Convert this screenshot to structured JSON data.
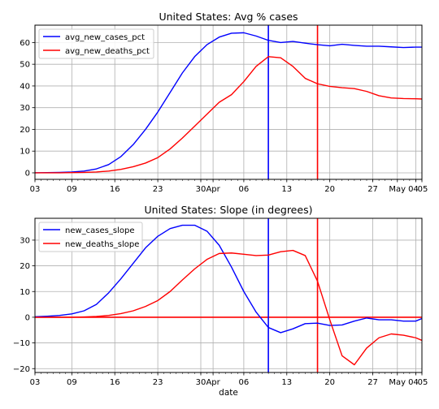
{
  "chart_data": [
    {
      "type": "line",
      "title": "United States: Avg % cases",
      "xlabel": "",
      "ylabel": "",
      "x_domain": [
        "2020-03-03",
        "2020-05-05"
      ],
      "ylim": [
        -3,
        68
      ],
      "y_ticks": [
        0,
        10,
        20,
        30,
        40,
        50,
        60
      ],
      "y_tick_labels": [
        "0",
        "10",
        "20",
        "30",
        "40",
        "50",
        "60"
      ],
      "grid": true,
      "legend_position": "top-left",
      "vlines": [
        {
          "x": "2020-04-10",
          "color": "#0000ff"
        },
        {
          "x": "2020-04-18",
          "color": "#ff0000"
        }
      ],
      "x": [
        "2020-03-03",
        "2020-03-05",
        "2020-03-07",
        "2020-03-09",
        "2020-03-11",
        "2020-03-13",
        "2020-03-15",
        "2020-03-17",
        "2020-03-19",
        "2020-03-21",
        "2020-03-23",
        "2020-03-25",
        "2020-03-27",
        "2020-03-29",
        "2020-03-31",
        "2020-04-02",
        "2020-04-04",
        "2020-04-06",
        "2020-04-08",
        "2020-04-10",
        "2020-04-12",
        "2020-04-14",
        "2020-04-16",
        "2020-04-18",
        "2020-04-20",
        "2020-04-22",
        "2020-04-24",
        "2020-04-26",
        "2020-04-28",
        "2020-04-30",
        "2020-05-02",
        "2020-05-04",
        "2020-05-05"
      ],
      "series": [
        {
          "name": "avg_new_cases_pct",
          "color": "#0000ff",
          "values": [
            0,
            0.1,
            0.2,
            0.4,
            0.8,
            1.8,
            3.8,
            7.5,
            13,
            20,
            28,
            37,
            46,
            53.5,
            59,
            62.5,
            64.3,
            64.5,
            63,
            61,
            60,
            60.5,
            59.7,
            59,
            58.5,
            59.2,
            58.7,
            58.3,
            58.3,
            58,
            57.7,
            57.9,
            57.9
          ]
        },
        {
          "name": "avg_new_deaths_pct",
          "color": "#ff0000",
          "values": [
            0,
            0,
            0,
            0.1,
            0.2,
            0.4,
            0.8,
            1.6,
            2.8,
            4.5,
            7,
            11,
            16,
            21.5,
            27,
            32.5,
            36,
            42,
            49,
            53.5,
            53,
            49,
            43.5,
            41,
            39.8,
            39.2,
            38.8,
            37.5,
            35.5,
            34.5,
            34.2,
            34.1,
            34
          ]
        }
      ]
    },
    {
      "type": "line",
      "title": "United States: Slope (in degrees)",
      "xlabel": "date",
      "ylabel": "",
      "x_domain": [
        "2020-03-03",
        "2020-05-05"
      ],
      "ylim": [
        -21.5,
        38.5
      ],
      "y_ticks": [
        -20,
        -10,
        0,
        10,
        20,
        30
      ],
      "y_tick_labels": [
        "−20",
        "−10",
        "0",
        "10",
        "20",
        "30"
      ],
      "grid": true,
      "legend_position": "top-left",
      "hline": {
        "y": 0,
        "color": "#ff0000"
      },
      "vlines": [
        {
          "x": "2020-04-10",
          "color": "#0000ff"
        },
        {
          "x": "2020-04-18",
          "color": "#ff0000"
        }
      ],
      "x": [
        "2020-03-03",
        "2020-03-05",
        "2020-03-07",
        "2020-03-09",
        "2020-03-11",
        "2020-03-13",
        "2020-03-15",
        "2020-03-17",
        "2020-03-19",
        "2020-03-21",
        "2020-03-23",
        "2020-03-25",
        "2020-03-27",
        "2020-03-29",
        "2020-03-31",
        "2020-04-02",
        "2020-04-04",
        "2020-04-06",
        "2020-04-08",
        "2020-04-10",
        "2020-04-12",
        "2020-04-14",
        "2020-04-16",
        "2020-04-18",
        "2020-04-20",
        "2020-04-22",
        "2020-04-24",
        "2020-04-26",
        "2020-04-28",
        "2020-04-30",
        "2020-05-02",
        "2020-05-04",
        "2020-05-05"
      ],
      "series": [
        {
          "name": "new_cases_slope",
          "color": "#0000ff",
          "values": [
            0.2,
            0.4,
            0.7,
            1.3,
            2.5,
            5,
            9.5,
            15,
            21,
            27,
            31.5,
            34.5,
            35.8,
            35.8,
            33.5,
            28,
            19.5,
            10,
            2,
            -4,
            -6,
            -4.5,
            -2.5,
            -2.3,
            -3.2,
            -3,
            -1.5,
            -0.3,
            -1,
            -1,
            -1.5,
            -1.5,
            -0.5
          ]
        },
        {
          "name": "new_deaths_slope",
          "color": "#ff0000",
          "values": [
            0,
            0,
            0,
            0,
            0.1,
            0.3,
            0.7,
            1.4,
            2.5,
            4.2,
            6.5,
            10,
            14.5,
            18.8,
            22.5,
            24.8,
            25,
            24.5,
            24,
            24.2,
            25.5,
            26,
            24,
            14,
            -1,
            -15,
            -18.5,
            -12,
            -8,
            -6.5,
            -7,
            -8,
            -9
          ]
        }
      ]
    }
  ],
  "x_tick_labels": [
    {
      "date": "2020-03-03",
      "label": "03"
    },
    {
      "date": "2020-03-09",
      "label": "09"
    },
    {
      "date": "2020-03-16",
      "label": "16"
    },
    {
      "date": "2020-03-23",
      "label": "23"
    },
    {
      "date": "2020-03-30",
      "label": "30"
    },
    {
      "date": "2020-04-01",
      "label": "Apr"
    },
    {
      "date": "2020-04-06",
      "label": "06"
    },
    {
      "date": "2020-04-13",
      "label": "13"
    },
    {
      "date": "2020-04-20",
      "label": "20"
    },
    {
      "date": "2020-04-27",
      "label": "27"
    },
    {
      "date": "2020-05-01",
      "label": "May"
    },
    {
      "date": "2020-05-04",
      "label": "04"
    },
    {
      "date": "2020-05-05",
      "label": "05"
    }
  ]
}
